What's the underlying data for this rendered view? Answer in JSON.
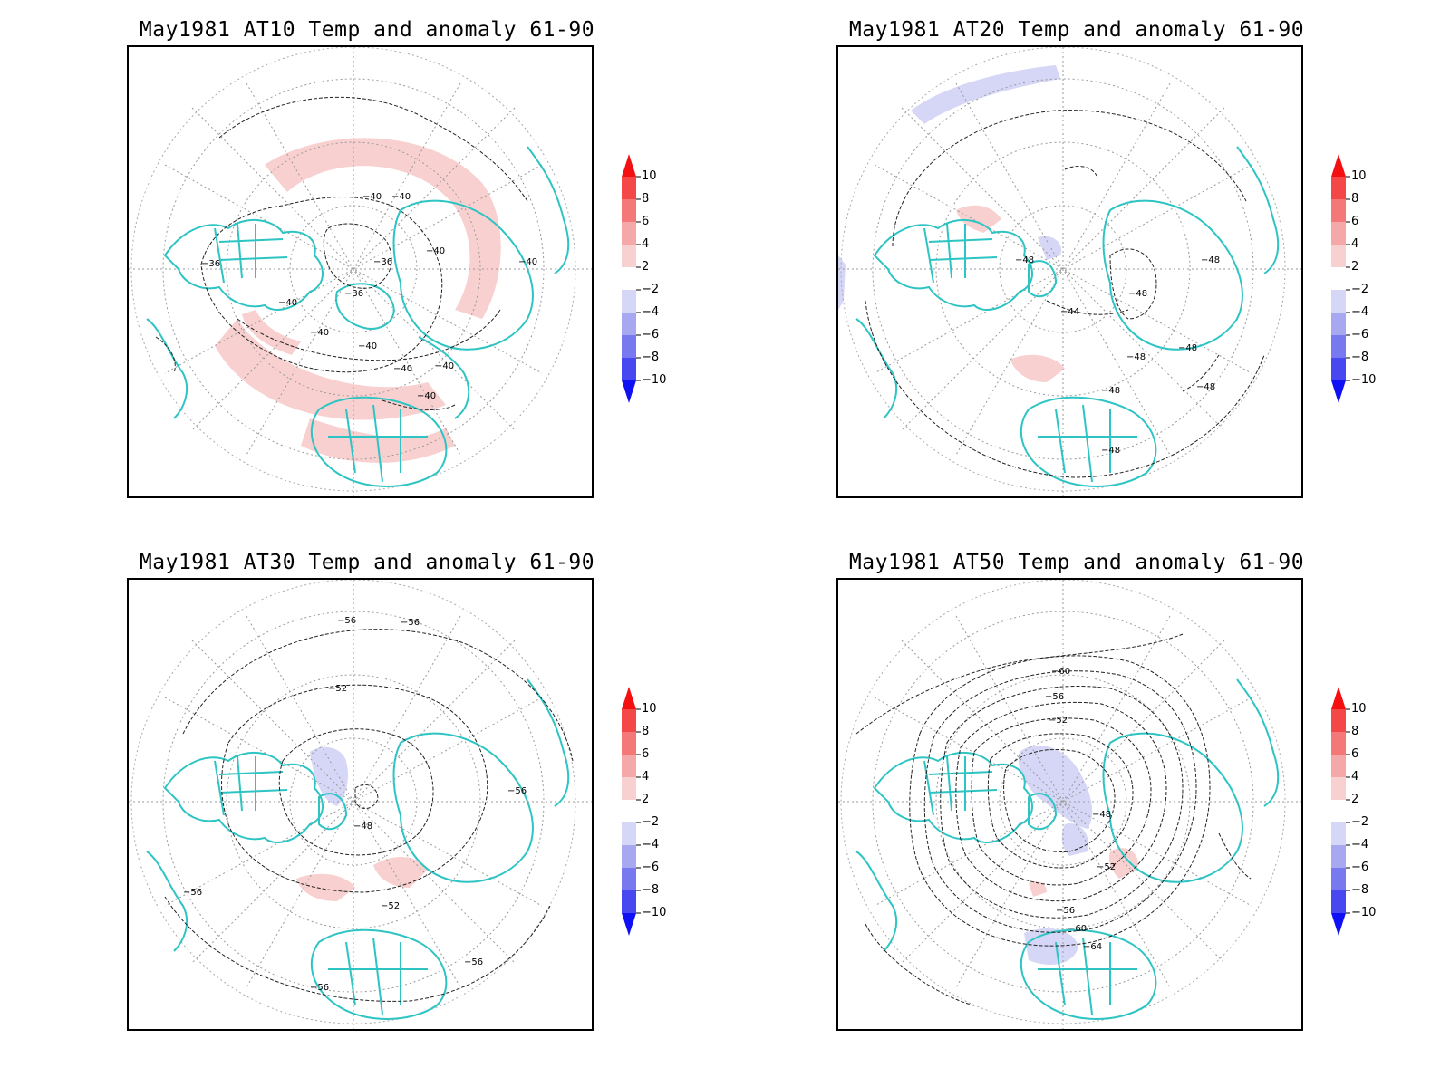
{
  "colors": {
    "coast": "#2ec4c4",
    "contour": "#222222",
    "grid": "#9a9a9a",
    "anomaly_warm": "#f8d0d0",
    "anomaly_cool": "#d6d6f6"
  },
  "colorbar": {
    "labels": [
      "10",
      "8",
      "6",
      "4",
      "2",
      "−2",
      "−4",
      "−6",
      "−8",
      "−10"
    ],
    "colors": [
      "#f41010",
      "#f44848",
      "#f47878",
      "#f4a8a8",
      "#f8d0d0",
      "#ffffff",
      "#d6d6f6",
      "#a8a8f0",
      "#7878f0",
      "#4848f0",
      "#1010f4"
    ]
  },
  "panels": [
    {
      "title": "May1981 AT10 Temp and anomaly 61-90",
      "contour_labels": [
        "−40",
        "−40",
        "−36",
        "−36",
        "−36",
        "−40",
        "−40",
        "−40",
        "−40",
        "−40",
        "−40",
        "−40",
        "−40"
      ],
      "anomaly_note": "warm ring"
    },
    {
      "title": "May1981 AT20 Temp and anomaly 61-90",
      "contour_labels": [
        "−48",
        "−48",
        "−44",
        "−48",
        "−48",
        "−48",
        "−48",
        "−48",
        "−48"
      ],
      "anomaly_note": "weak"
    },
    {
      "title": "May1981 AT30 Temp and anomaly 61-90",
      "contour_labels": [
        "−56",
        "−56",
        "−52",
        "−48",
        "−52",
        "−56",
        "−56",
        "−56",
        "−56"
      ],
      "anomaly_note": "weak"
    },
    {
      "title": "May1981 AT50 Temp and anomaly 61-90",
      "contour_labels": [
        "−60",
        "−56",
        "−52",
        "−48",
        "−52",
        "−56",
        "−60",
        "−64"
      ],
      "anomaly_note": "cool pole"
    }
  ]
}
